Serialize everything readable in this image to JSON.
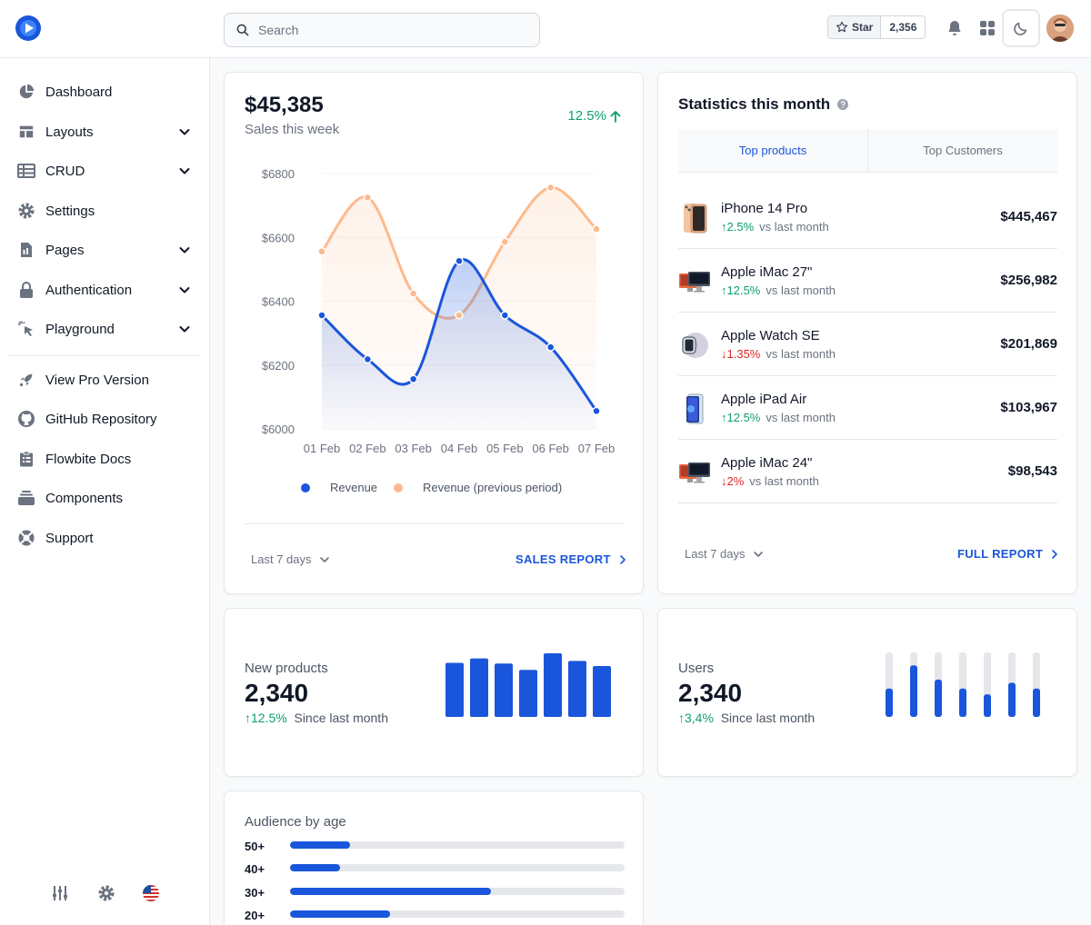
{
  "header": {
    "search_placeholder": "Search",
    "github_star_label": "Star",
    "github_star_count": "2,356"
  },
  "sidebar": {
    "items": [
      {
        "label": "Dashboard",
        "icon": "pie-chart-icon",
        "has_children": false
      },
      {
        "label": "Layouts",
        "icon": "layout-icon",
        "has_children": true
      },
      {
        "label": "CRUD",
        "icon": "table-icon",
        "has_children": true
      },
      {
        "label": "Settings",
        "icon": "gear-icon",
        "has_children": false
      },
      {
        "label": "Pages",
        "icon": "document-icon",
        "has_children": true
      },
      {
        "label": "Authentication",
        "icon": "lock-icon",
        "has_children": true
      },
      {
        "label": "Playground",
        "icon": "cursor-click-icon",
        "has_children": true
      }
    ],
    "secondary": [
      {
        "label": "View Pro Version",
        "icon": "rocket-icon"
      },
      {
        "label": "GitHub Repository",
        "icon": "github-icon"
      },
      {
        "label": "Flowbite Docs",
        "icon": "clipboard-icon"
      },
      {
        "label": "Components",
        "icon": "collection-icon"
      },
      {
        "label": "Support",
        "icon": "lifebuoy-icon"
      }
    ]
  },
  "sales": {
    "value": "$45,385",
    "label": "Sales this week",
    "change": "12.5%",
    "period_label": "Last 7 days",
    "report_label": "SALES REPORT"
  },
  "chart_data": {
    "type": "area",
    "categories": [
      "01 Feb",
      "02 Feb",
      "03 Feb",
      "04 Feb",
      "05 Feb",
      "06 Feb",
      "07 Feb"
    ],
    "ylim": [
      6000,
      6800
    ],
    "yticks": [
      "$6800",
      "$6600",
      "$6400",
      "$6200",
      "$6000"
    ],
    "series": [
      {
        "name": "Revenue",
        "color": "#1a56db",
        "values": [
          6356,
          6218,
          6156,
          6526,
          6356,
          6256,
          6056
        ]
      },
      {
        "name": "Revenue (previous period)",
        "color": "#fdba8c",
        "values": [
          6556,
          6725,
          6424,
          6356,
          6586,
          6756,
          6626
        ]
      }
    ]
  },
  "stats": {
    "title": "Statistics this month",
    "tabs": [
      "Top products",
      "Top Customers"
    ],
    "vs_label": "vs last month",
    "products": [
      {
        "name": "iPhone 14 Pro",
        "change": "2.5%",
        "direction": "up",
        "amount": "$445,467"
      },
      {
        "name": "Apple iMac 27\"",
        "change": "12.5%",
        "direction": "up",
        "amount": "$256,982"
      },
      {
        "name": "Apple Watch SE",
        "change": "1.35%",
        "direction": "down",
        "amount": "$201,869"
      },
      {
        "name": "Apple iPad Air",
        "change": "12.5%",
        "direction": "up",
        "amount": "$103,967"
      },
      {
        "name": "Apple iMac 24\"",
        "change": "2%",
        "direction": "down",
        "amount": "$98,543"
      }
    ],
    "period_label": "Last 7 days",
    "report_label": "FULL REPORT"
  },
  "new_products": {
    "label": "New products",
    "value": "2,340",
    "change": "12.5%",
    "since": "Since last month",
    "bars": [
      85,
      92,
      84,
      74,
      100,
      88,
      80
    ]
  },
  "users": {
    "label": "Users",
    "value": "2,340",
    "change": "3,4%",
    "since": "Since last month",
    "bars": [
      0.44,
      0.8,
      0.58,
      0.44,
      0.35,
      0.53,
      0.44
    ]
  },
  "audience": {
    "title": "Audience by age",
    "groups": [
      {
        "label": "50+",
        "value": 0.18
      },
      {
        "label": "40+",
        "value": 0.15
      },
      {
        "label": "30+",
        "value": 0.6
      },
      {
        "label": "20+",
        "value": 0.3
      }
    ]
  },
  "colors": {
    "accent": "#1a56db",
    "orange": "#fdba8c",
    "positive": "#0e9f6e",
    "negative": "#e02424"
  }
}
